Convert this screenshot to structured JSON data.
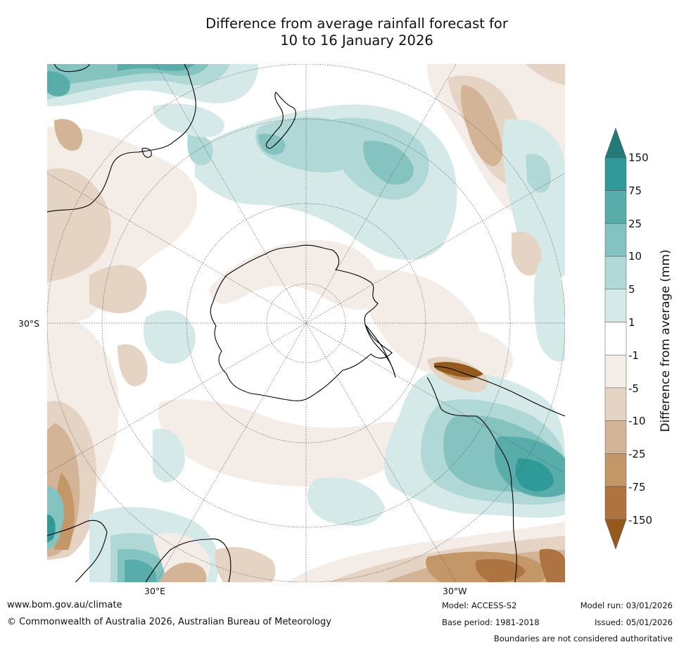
{
  "title": {
    "line1": "Difference from average rainfall forecast for",
    "line2": "10 to 16 January 2026"
  },
  "map": {
    "projection": "south polar stereographic",
    "lat_label_left": "30°S",
    "lon_label_bottom_left": "30°E",
    "lon_label_bottom_right": "30°W",
    "colors": {
      "ocean_neutral": "#ffffff",
      "coast": "#000000",
      "graticule": "#555555"
    }
  },
  "colorbar": {
    "title": "Difference from average (mm)",
    "ticks": [
      "150",
      "75",
      "25",
      "10",
      "5",
      "1",
      "-1",
      "-5",
      "-10",
      "-25",
      "-75",
      "-150"
    ],
    "colors": {
      "top_triangle": "#237a78",
      "c150_75": "#2f9a97",
      "c75_25": "#58acaa",
      "c25_10": "#85c3c1",
      "c10_5": "#afd8d7",
      "c5_1": "#d5e9e8",
      "c1_m1": "#ffffff",
      "cm1_m5": "#f4ece7",
      "cm5_m10": "#e5d3c4",
      "cm10_m25": "#d4b497",
      "cm25_m75": "#c39767",
      "cm75_m150": "#ad7340",
      "bottom_triangle": "#94591d"
    }
  },
  "footer": {
    "website": "www.bom.gov.au/climate",
    "copyright": "© Commonwealth of Australia 2026, Australian Bureau of Meteorology",
    "model": "Model: ACCESS-S2",
    "base_period": "Base period: 1981-2018",
    "model_run": "Model run: 03/01/2026",
    "issued": "Issued: 05/01/2026",
    "disclaimer": "Boundaries are not considered authoritative"
  }
}
